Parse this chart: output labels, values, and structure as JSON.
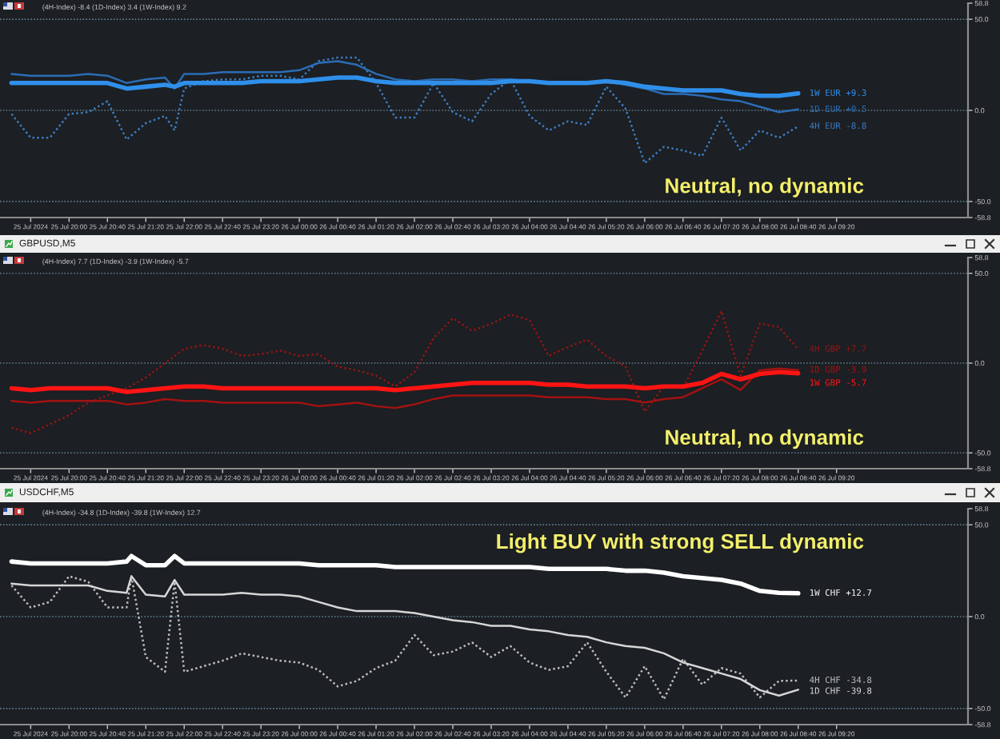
{
  "chart_data": [
    {
      "type": "line",
      "subtitle": "(4H-Index) -8.4 (1D-Index) 3.4 (1W-Index) 9.2",
      "x": [
        "2024-07-25T19:00",
        "2024-07-25T19:20",
        "2024-07-25T19:40",
        "2024-07-25T20:00",
        "2024-07-25T20:20",
        "2024-07-25T20:40",
        "2024-07-25T21:00",
        "2024-07-25T21:20",
        "2024-07-25T21:40",
        "2024-07-25T21:50",
        "2024-07-25T22:00",
        "2024-07-25T22:20",
        "2024-07-25T22:40",
        "2024-07-25T23:00",
        "2024-07-25T23:20",
        "2024-07-25T23:40",
        "2024-07-26T00:00",
        "2024-07-26T00:20",
        "2024-07-26T00:40",
        "2024-07-26T01:00",
        "2024-07-26T01:20",
        "2024-07-26T01:40",
        "2024-07-26T02:00",
        "2024-07-26T02:20",
        "2024-07-26T02:40",
        "2024-07-26T03:00",
        "2024-07-26T03:20",
        "2024-07-26T03:40",
        "2024-07-26T04:00",
        "2024-07-26T04:20",
        "2024-07-26T04:40",
        "2024-07-26T05:00",
        "2024-07-26T05:20",
        "2024-07-26T05:40",
        "2024-07-26T06:00",
        "2024-07-26T06:20",
        "2024-07-26T06:40",
        "2024-07-26T07:00",
        "2024-07-26T07:20",
        "2024-07-26T07:40",
        "2024-07-26T08:00",
        "2024-07-26T08:20",
        "2024-07-26T08:40"
      ],
      "series": [
        {
          "color": "#2f8fea",
          "line_style": "solid",
          "values": [
            15,
            15,
            15,
            15,
            15,
            15,
            12,
            13,
            14,
            13,
            15,
            15,
            15,
            15,
            16,
            16,
            16,
            17,
            18,
            18,
            16,
            15,
            15,
            15,
            15,
            15,
            15,
            16,
            16,
            15,
            15,
            15,
            16,
            15,
            13,
            12,
            11,
            11,
            11,
            9,
            8,
            8,
            9.3
          ]
        },
        {
          "color": "#2a6db5",
          "line_style": "solid",
          "values": [
            20,
            19,
            19,
            19,
            20,
            19,
            15,
            17,
            18,
            12,
            20,
            20,
            21,
            21,
            21,
            21,
            22,
            26,
            27,
            25,
            20,
            17,
            16,
            17,
            17,
            16,
            17,
            17,
            16,
            15,
            15,
            15,
            16,
            14,
            12,
            9,
            9,
            8,
            6,
            5,
            2,
            -1,
            0.5
          ]
        },
        {
          "color": "#3b7cc0",
          "line_style": "dotted",
          "values": [
            -2,
            -15,
            -15,
            -2,
            -1,
            5,
            -16,
            -7,
            -3,
            -11,
            12,
            16,
            17,
            17,
            19,
            19,
            17,
            27,
            29,
            29,
            15,
            -4,
            -4,
            15,
            -1,
            -6,
            9,
            17,
            -3,
            -11,
            -6,
            -8,
            13,
            1,
            -29,
            -20,
            -22,
            -25,
            -4,
            -22,
            -11,
            -15,
            -8.8
          ]
        }
      ],
      "xlim": [
        "2024-07-25T18:48",
        "2024-07-26T11:37"
      ],
      "xticks": [
        {
          "value": "2024-07-25T19:20",
          "label": "25 Jul 2024"
        },
        {
          "value": "2024-07-25T20:00",
          "label": "25 Jul 20:00"
        },
        {
          "value": "2024-07-25T20:40",
          "label": "25 Jul 20:40"
        },
        {
          "value": "2024-07-25T21:20",
          "label": "25 Jul 21:20"
        },
        {
          "value": "2024-07-25T22:00",
          "label": "25 Jul 22:00"
        },
        {
          "value": "2024-07-25T22:40",
          "label": "25 Jul 22:40"
        },
        {
          "value": "2024-07-25T23:20",
          "label": "25 Jul 23:20"
        },
        {
          "value": "2024-07-26T00:00",
          "label": "26 Jul 00:00"
        },
        {
          "value": "2024-07-26T00:40",
          "label": "26 Jul 00:40"
        },
        {
          "value": "2024-07-26T01:20",
          "label": "26 Jul 01:20"
        },
        {
          "value": "2024-07-26T02:00",
          "label": "26 Jul 02:00"
        },
        {
          "value": "2024-07-26T02:40",
          "label": "26 Jul 02:40"
        },
        {
          "value": "2024-07-26T03:20",
          "label": "26 Jul 03:20"
        },
        {
          "value": "2024-07-26T04:00",
          "label": "26 Jul 04:00"
        },
        {
          "value": "2024-07-26T04:40",
          "label": "26 Jul 04:40"
        },
        {
          "value": "2024-07-26T05:20",
          "label": "26 Jul 05:20"
        },
        {
          "value": "2024-07-26T06:00",
          "label": "26 Jul 06:00"
        },
        {
          "value": "2024-07-26T06:40",
          "label": "26 Jul 06:40"
        },
        {
          "value": "2024-07-26T07:20",
          "label": "26 Jul 07:20"
        },
        {
          "value": "2024-07-26T08:00",
          "label": "26 Jul 08:00"
        },
        {
          "value": "2024-07-26T08:40",
          "label": "26 Jul 08:40"
        },
        {
          "value": "2024-07-26T09:20",
          "label": "26 Jul 09:20"
        }
      ],
      "ylim": [
        -58.8,
        58.8
      ],
      "yticks": [
        {
          "value": 58.8,
          "label": "58.8"
        },
        {
          "value": 50,
          "label": "50.0"
        },
        {
          "value": 0,
          "label": "0.0"
        },
        {
          "value": -50,
          "label": "-50.0"
        },
        {
          "value": -58.8,
          "label": "-58.8"
        }
      ],
      "ref_lines": [
        {
          "axis": "y",
          "value": 50,
          "color": "#5d7c8c",
          "line_style": "dotted"
        },
        {
          "axis": "y",
          "value": 0,
          "color": "#5d7c8c",
          "line_style": "dotted"
        },
        {
          "axis": "y",
          "value": -50,
          "color": "#5d7c8c",
          "line_style": "dotted"
        }
      ],
      "annotations": [
        {
          "text": "1W EUR +9.3",
          "x": "2024-07-26T08:40",
          "y": 9.3
        },
        {
          "text": "1D EUR +0.5",
          "x": "2024-07-26T08:40",
          "y": 0.5
        },
        {
          "text": "4H EUR -8.8",
          "x": "2024-07-26T08:40",
          "y": -8.8
        },
        "Neutral, no dynamic"
      ]
    },
    {
      "type": "line",
      "title": "GBPUSD,M5",
      "subtitle": "(4H-Index) 7.7 (1D-Index) -3.9 (1W-Index) -5.7",
      "x": [
        "2024-07-25T19:00",
        "2024-07-25T19:20",
        "2024-07-25T19:40",
        "2024-07-25T20:00",
        "2024-07-25T20:20",
        "2024-07-25T20:40",
        "2024-07-25T21:00",
        "2024-07-25T21:20",
        "2024-07-25T21:40",
        "2024-07-25T22:00",
        "2024-07-25T22:20",
        "2024-07-25T22:40",
        "2024-07-25T23:00",
        "2024-07-25T23:20",
        "2024-07-25T23:40",
        "2024-07-26T00:00",
        "2024-07-26T00:20",
        "2024-07-26T00:40",
        "2024-07-26T01:00",
        "2024-07-26T01:20",
        "2024-07-26T01:40",
        "2024-07-26T02:00",
        "2024-07-26T02:20",
        "2024-07-26T02:40",
        "2024-07-26T03:00",
        "2024-07-26T03:20",
        "2024-07-26T03:40",
        "2024-07-26T04:00",
        "2024-07-26T04:20",
        "2024-07-26T04:40",
        "2024-07-26T05:00",
        "2024-07-26T05:20",
        "2024-07-26T05:40",
        "2024-07-26T06:00",
        "2024-07-26T06:20",
        "2024-07-26T06:40",
        "2024-07-26T07:00",
        "2024-07-26T07:20",
        "2024-07-26T07:40",
        "2024-07-26T08:00",
        "2024-07-26T08:20",
        "2024-07-26T08:40"
      ],
      "series": [
        {
          "color": "#ff1414",
          "line_style": "solid",
          "values": [
            -14,
            -15,
            -14,
            -14,
            -14,
            -14,
            -16,
            -15,
            -14,
            -13,
            -13,
            -14,
            -14,
            -14,
            -14,
            -14,
            -14,
            -14,
            -14,
            -14,
            -15,
            -14,
            -13,
            -12,
            -11,
            -11,
            -11,
            -11,
            -12,
            -12,
            -13,
            -13,
            -13,
            -14,
            -13,
            -13,
            -11,
            -6,
            -9,
            -6,
            -5,
            -5.7
          ]
        },
        {
          "color": "#a31212",
          "line_style": "solid",
          "values": [
            -21,
            -22,
            -21,
            -21,
            -21,
            -21,
            -23,
            -22,
            -20,
            -21,
            -21,
            -22,
            -22,
            -22,
            -22,
            -22,
            -24,
            -23,
            -22,
            -24,
            -25,
            -23,
            -20,
            -18,
            -18,
            -18,
            -18,
            -18,
            -19,
            -19,
            -19,
            -20,
            -20,
            -22,
            -20,
            -19,
            -14,
            -9,
            -15,
            -4,
            -3,
            -3.9
          ]
        },
        {
          "color": "#8e1616",
          "line_style": "dotted",
          "values": [
            -36,
            -39,
            -34,
            -29,
            -22,
            -18,
            -14,
            -8,
            0,
            8,
            10,
            8,
            4,
            5,
            7,
            4,
            5,
            -2,
            -4,
            -7,
            -13,
            -5,
            14,
            25,
            18,
            22,
            27,
            24,
            4,
            9,
            13,
            4,
            -2,
            -27,
            -13,
            -14,
            7,
            29,
            -7,
            22,
            20,
            7.7
          ]
        }
      ],
      "xlim": [
        "2024-07-25T18:48",
        "2024-07-26T11:37"
      ],
      "xticks": [
        {
          "value": "2024-07-25T19:20",
          "label": "25 Jul 2024"
        },
        {
          "value": "2024-07-25T20:00",
          "label": "25 Jul 20:00"
        },
        {
          "value": "2024-07-25T20:40",
          "label": "25 Jul 20:40"
        },
        {
          "value": "2024-07-25T21:20",
          "label": "25 Jul 21:20"
        },
        {
          "value": "2024-07-25T22:00",
          "label": "25 Jul 22:00"
        },
        {
          "value": "2024-07-25T22:40",
          "label": "25 Jul 22:40"
        },
        {
          "value": "2024-07-25T23:20",
          "label": "25 Jul 23:20"
        },
        {
          "value": "2024-07-26T00:00",
          "label": "26 Jul 00:00"
        },
        {
          "value": "2024-07-26T00:40",
          "label": "26 Jul 00:40"
        },
        {
          "value": "2024-07-26T01:20",
          "label": "26 Jul 01:20"
        },
        {
          "value": "2024-07-26T02:00",
          "label": "26 Jul 02:00"
        },
        {
          "value": "2024-07-26T02:40",
          "label": "26 Jul 02:40"
        },
        {
          "value": "2024-07-26T03:20",
          "label": "26 Jul 03:20"
        },
        {
          "value": "2024-07-26T04:00",
          "label": "26 Jul 04:00"
        },
        {
          "value": "2024-07-26T04:40",
          "label": "26 Jul 04:40"
        },
        {
          "value": "2024-07-26T05:20",
          "label": "26 Jul 05:20"
        },
        {
          "value": "2024-07-26T06:00",
          "label": "26 Jul 06:00"
        },
        {
          "value": "2024-07-26T06:40",
          "label": "26 Jul 06:40"
        },
        {
          "value": "2024-07-26T07:20",
          "label": "26 Jul 07:20"
        },
        {
          "value": "2024-07-26T08:00",
          "label": "26 Jul 08:00"
        },
        {
          "value": "2024-07-26T08:40",
          "label": "26 Jul 08:40"
        },
        {
          "value": "2024-07-26T09:20",
          "label": "26 Jul 09:20"
        }
      ],
      "ylim": [
        -58.8,
        58.8
      ],
      "yticks": [
        {
          "value": 58.8,
          "label": "58.8"
        },
        {
          "value": 50,
          "label": "50.0"
        },
        {
          "value": 0,
          "label": "0.0"
        },
        {
          "value": -50,
          "label": "-50.0"
        },
        {
          "value": -58.8,
          "label": "-58.8"
        }
      ],
      "ref_lines": [
        {
          "axis": "y",
          "value": 50,
          "color": "#5d7c8c",
          "line_style": "dotted"
        },
        {
          "axis": "y",
          "value": 0,
          "color": "#5d7c8c",
          "line_style": "dotted"
        },
        {
          "axis": "y",
          "value": -50,
          "color": "#5d7c8c",
          "line_style": "dotted"
        }
      ],
      "annotations": [
        {
          "text": "4H GBP +7.7",
          "x": "2024-07-26T08:40",
          "y": 7.7
        },
        {
          "text": "1D GBP -3.9",
          "x": "2024-07-26T08:40",
          "y": -3.9
        },
        {
          "text": "1W GBP -5.7",
          "x": "2024-07-26T08:40",
          "y": -5.7
        },
        "Neutral, no dynamic"
      ]
    },
    {
      "type": "line",
      "title": "USDCHF,M5",
      "subtitle": "(4H-Index) -34.8 (1D-Index) -39.8 (1W-Index) 12.7",
      "x": [
        "2024-07-25T19:00",
        "2024-07-25T19:20",
        "2024-07-25T19:40",
        "2024-07-25T20:00",
        "2024-07-25T20:20",
        "2024-07-25T20:40",
        "2024-07-25T21:00",
        "2024-07-25T21:05",
        "2024-07-25T21:20",
        "2024-07-25T21:40",
        "2024-07-25T21:50",
        "2024-07-25T22:00",
        "2024-07-25T22:20",
        "2024-07-25T22:40",
        "2024-07-25T23:00",
        "2024-07-25T23:20",
        "2024-07-25T23:40",
        "2024-07-26T00:00",
        "2024-07-26T00:20",
        "2024-07-26T00:40",
        "2024-07-26T01:00",
        "2024-07-26T01:20",
        "2024-07-26T01:40",
        "2024-07-26T02:00",
        "2024-07-26T02:20",
        "2024-07-26T02:40",
        "2024-07-26T03:00",
        "2024-07-26T03:20",
        "2024-07-26T03:40",
        "2024-07-26T04:00",
        "2024-07-26T04:20",
        "2024-07-26T04:40",
        "2024-07-26T05:00",
        "2024-07-26T05:20",
        "2024-07-26T05:40",
        "2024-07-26T06:00",
        "2024-07-26T06:20",
        "2024-07-26T06:40",
        "2024-07-26T07:00",
        "2024-07-26T07:20",
        "2024-07-26T07:40",
        "2024-07-26T08:00",
        "2024-07-26T08:20",
        "2024-07-26T08:40"
      ],
      "series": [
        {
          "color": "#ffffff",
          "line_style": "solid",
          "values": [
            30,
            29,
            29,
            29,
            29,
            29,
            30,
            33,
            28,
            28,
            33,
            29,
            29,
            29,
            29,
            29,
            29,
            29,
            28,
            28,
            28,
            28,
            27,
            27,
            27,
            27,
            27,
            27,
            27,
            27,
            26,
            26,
            26,
            26,
            25,
            25,
            24,
            22,
            21,
            20,
            18,
            14,
            13,
            12.7
          ]
        },
        {
          "color": "#d6d6d6",
          "line_style": "solid",
          "values": [
            18,
            17,
            17,
            17,
            17,
            14,
            13,
            22,
            12,
            11,
            20,
            12,
            12,
            12,
            13,
            12,
            12,
            11,
            8,
            5,
            3,
            3,
            3,
            2,
            0,
            -2,
            -3,
            -5,
            -5,
            -7,
            -8,
            -10,
            -11,
            -14,
            -16,
            -17,
            -20,
            -25,
            -28,
            -31,
            -34,
            -40,
            -43,
            -39.8
          ]
        },
        {
          "color": "#bdbdbd",
          "line_style": "dotted",
          "values": [
            17,
            5,
            8,
            22,
            19,
            5,
            5,
            22,
            -22,
            -30,
            19,
            -30,
            -27,
            -24,
            -20,
            -22,
            -24,
            -25,
            -29,
            -38,
            -35,
            -28,
            -24,
            -10,
            -21,
            -19,
            -14,
            -22,
            -16,
            -25,
            -29,
            -27,
            -14,
            -30,
            -44,
            -27,
            -45,
            -23,
            -37,
            -28,
            -31,
            -44,
            -35,
            -34.8
          ]
        }
      ],
      "xlim": [
        "2024-07-25T18:48",
        "2024-07-26T11:37"
      ],
      "xticks": [
        {
          "value": "2024-07-25T19:20",
          "label": "25 Jul 2024"
        },
        {
          "value": "2024-07-25T20:00",
          "label": "25 Jul 20:00"
        },
        {
          "value": "2024-07-25T20:40",
          "label": "25 Jul 20:40"
        },
        {
          "value": "2024-07-25T21:20",
          "label": "25 Jul 21:20"
        },
        {
          "value": "2024-07-25T22:00",
          "label": "25 Jul 22:00"
        },
        {
          "value": "2024-07-25T22:40",
          "label": "25 Jul 22:40"
        },
        {
          "value": "2024-07-25T23:20",
          "label": "25 Jul 23:20"
        },
        {
          "value": "2024-07-26T00:00",
          "label": "26 Jul 00:00"
        },
        {
          "value": "2024-07-26T00:40",
          "label": "26 Jul 00:40"
        },
        {
          "value": "2024-07-26T01:20",
          "label": "26 Jul 01:20"
        },
        {
          "value": "2024-07-26T02:00",
          "label": "26 Jul 02:00"
        },
        {
          "value": "2024-07-26T02:40",
          "label": "26 Jul 02:40"
        },
        {
          "value": "2024-07-26T03:20",
          "label": "26 Jul 03:20"
        },
        {
          "value": "2024-07-26T04:00",
          "label": "26 Jul 04:00"
        },
        {
          "value": "2024-07-26T04:40",
          "label": "26 Jul 04:40"
        },
        {
          "value": "2024-07-26T05:20",
          "label": "26 Jul 05:20"
        },
        {
          "value": "2024-07-26T06:00",
          "label": "26 Jul 06:00"
        },
        {
          "value": "2024-07-26T06:40",
          "label": "26 Jul 06:40"
        },
        {
          "value": "2024-07-26T07:20",
          "label": "26 Jul 07:20"
        },
        {
          "value": "2024-07-26T08:00",
          "label": "26 Jul 08:00"
        },
        {
          "value": "2024-07-26T08:40",
          "label": "26 Jul 08:40"
        },
        {
          "value": "2024-07-26T09:20",
          "label": "26 Jul 09:20"
        }
      ],
      "ylim": [
        -58.8,
        58.8
      ],
      "yticks": [
        {
          "value": 58.8,
          "label": "58.8"
        },
        {
          "value": 50,
          "label": "50.0"
        },
        {
          "value": 0,
          "label": "0.0"
        },
        {
          "value": -50,
          "label": "-50.0"
        },
        {
          "value": -58.8,
          "label": "-58.8"
        }
      ],
      "ref_lines": [
        {
          "axis": "y",
          "value": 50,
          "color": "#5d7c8c",
          "line_style": "dotted"
        },
        {
          "axis": "y",
          "value": 0,
          "color": "#5d7c8c",
          "line_style": "dotted"
        },
        {
          "axis": "y",
          "value": -50,
          "color": "#5d7c8c",
          "line_style": "dotted"
        }
      ],
      "annotations": [
        {
          "text": "1W CHF +12.7",
          "x": "2024-07-26T08:40",
          "y": 12.7
        },
        {
          "text": "4H CHF -34.8",
          "x": "2024-07-26T08:40",
          "y": -34.8
        },
        {
          "text": "1D CHF -39.8",
          "x": "2024-07-26T08:40",
          "y": -39.8
        },
        "Light BUY with strong SELL dynamic"
      ]
    }
  ]
}
